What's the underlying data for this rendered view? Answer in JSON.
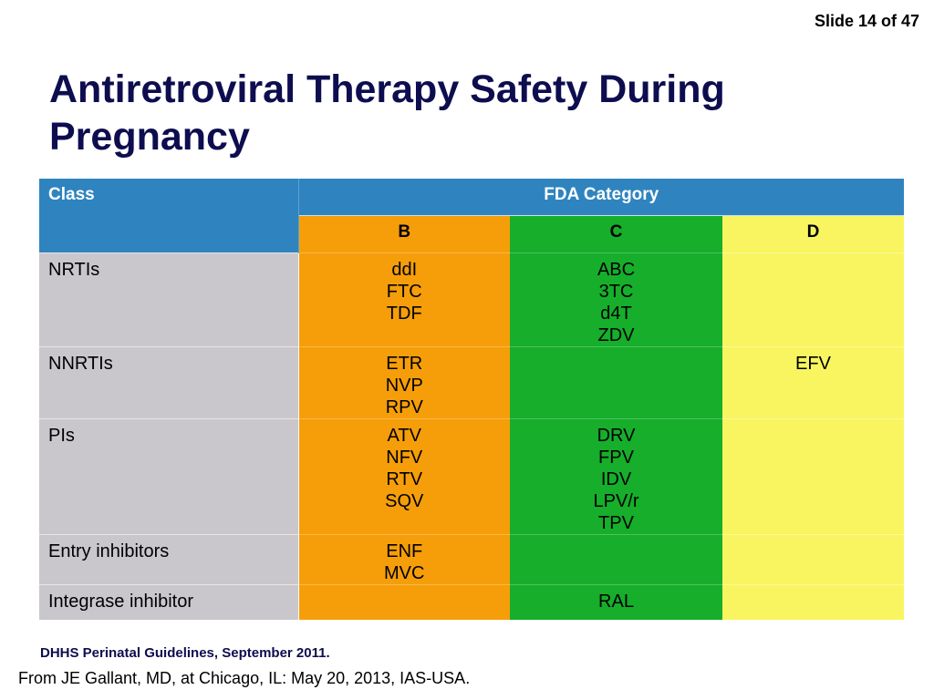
{
  "slide_number": "Slide 14 of 47",
  "title": "Antiretroviral Therapy Safety During Pregnancy",
  "table": {
    "class_header": "Class",
    "fda_header": "FDA Category",
    "categories": [
      "B",
      "C",
      "D"
    ],
    "rows": [
      {
        "class": "NRTIs",
        "B": [
          "ddI",
          "FTC",
          "TDF"
        ],
        "C": [
          "ABC",
          "3TC",
          "d4T",
          "ZDV"
        ],
        "D": []
      },
      {
        "class": "NNRTIs",
        "B": [
          "ETR",
          "NVP",
          "RPV"
        ],
        "C": [],
        "D": [
          "EFV"
        ]
      },
      {
        "class": "PIs",
        "B": [
          "ATV",
          "NFV",
          "RTV",
          "SQV"
        ],
        "C": [
          "DRV",
          "FPV",
          "IDV",
          "LPV/r",
          "TPV"
        ],
        "D": []
      },
      {
        "class": "Entry inhibitors",
        "B": [
          "ENF",
          "MVC"
        ],
        "C": [],
        "D": []
      },
      {
        "class": "Integrase inhibitor",
        "B": [],
        "C": [
          "RAL"
        ],
        "D": []
      }
    ]
  },
  "footnote": "DHHS Perinatal Guidelines, September 2011.",
  "source": "From JE Gallant, MD, at Chicago, IL: May 20, 2013, IAS-USA.",
  "colors": {
    "header_blue": "#2f84bf",
    "category_b": "#f59e0a",
    "category_c": "#16ae2b",
    "category_d": "#f8f560",
    "class_column": "#c9c7cc",
    "title_navy": "#0d0d4f"
  }
}
